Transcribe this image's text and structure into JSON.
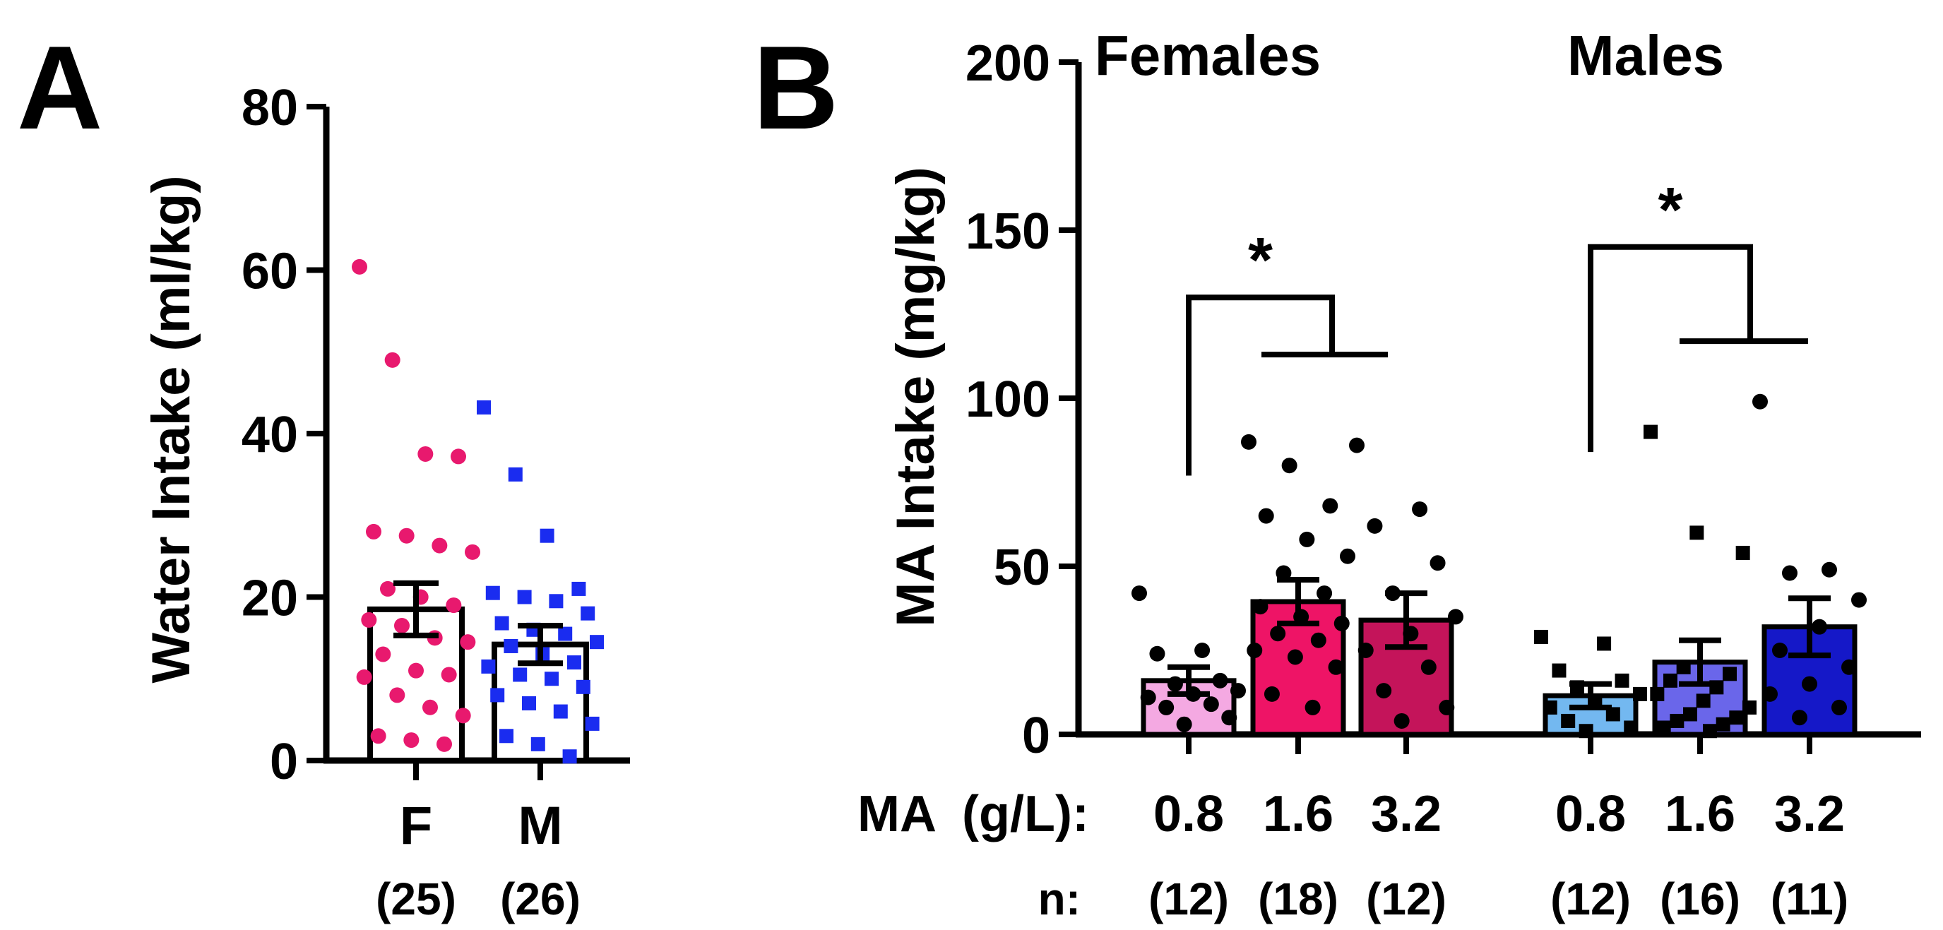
{
  "chart_data": [
    {
      "panel": "A",
      "type": "bar",
      "ylabel": "Water Intake  (ml/kg)",
      "ylim": [
        0,
        80
      ],
      "yticks": [
        0,
        20,
        40,
        60,
        80
      ],
      "categories": [
        "F",
        "M"
      ],
      "n_labels": [
        "(25)",
        "(26)"
      ],
      "values": [
        18.5,
        14.2
      ],
      "sem": [
        3.2,
        2.3
      ],
      "point_colors": [
        "#e8196e",
        "#1a2cf0"
      ],
      "point_shapes": [
        "circle",
        "square"
      ],
      "points": [
        [
          60.4,
          49.0,
          37.5,
          37.2,
          28.0,
          27.5,
          26.3,
          25.5,
          21.0,
          20.0,
          19.0,
          17.2,
          16.5,
          15.0,
          14.5,
          13.0,
          11.0,
          10.5,
          10.2,
          8.0,
          6.5,
          5.5,
          3.0,
          2.5,
          2.0
        ],
        [
          43.2,
          35.0,
          27.5,
          21.0,
          20.5,
          20.0,
          19.5,
          18.0,
          16.8,
          16.0,
          15.5,
          14.5,
          14.0,
          13.0,
          12.0,
          11.5,
          10.5,
          10.0,
          9.0,
          8.0,
          7.0,
          6.0,
          4.5,
          3.0,
          2.0,
          0.5
        ]
      ]
    },
    {
      "panel": "B",
      "type": "bar",
      "ylabel": "MA Intake (mg/kg)",
      "ylim": [
        0,
        200
      ],
      "yticks": [
        0,
        50,
        100,
        150,
        200
      ],
      "group_labels": [
        "Females",
        "Males"
      ],
      "row_labels": {
        "ma": "MA",
        "unit": "(g/L):",
        "n": "n:"
      },
      "categories": [
        "0.8",
        "1.6",
        "3.2",
        "0.8",
        "1.6",
        "3.2"
      ],
      "n_labels": [
        "(12)",
        "(18)",
        "(12)",
        "(12)",
        "(16)",
        "(11)"
      ],
      "values": [
        16,
        39.5,
        34,
        11.5,
        21.5,
        32
      ],
      "sem": [
        4,
        6.5,
        8,
        3.5,
        6.5,
        8.5
      ],
      "bar_colors": [
        "#f4a9e2",
        "#ee1466",
        "#c4145a",
        "#73b8f0",
        "#6a66ea",
        "#1518c8"
      ],
      "point_shapes": [
        "circle",
        "circle",
        "circle",
        "square",
        "square",
        "circle"
      ],
      "points": [
        [
          42,
          25,
          24,
          16,
          15,
          13,
          12,
          11,
          9,
          8,
          5,
          3
        ],
        [
          87,
          80,
          68,
          65,
          58,
          53,
          48,
          42,
          38,
          35,
          33,
          30,
          28,
          25,
          23,
          20,
          12,
          8
        ],
        [
          86,
          67,
          62,
          51,
          42,
          35,
          30,
          25,
          20,
          13,
          8,
          4
        ],
        [
          29,
          27,
          19,
          16,
          14,
          12,
          10,
          8,
          6,
          4,
          2,
          1
        ],
        [
          90,
          60,
          54,
          20,
          18,
          16,
          14,
          12,
          10,
          8,
          6,
          5,
          4,
          3,
          2,
          1
        ],
        [
          99,
          49,
          48,
          40,
          32,
          25,
          20,
          15,
          12,
          8,
          5
        ]
      ],
      "significance": [
        {
          "label": "*",
          "group": "Females"
        },
        {
          "label": "*",
          "group": "Males"
        }
      ]
    }
  ],
  "panel_letters": [
    "A",
    "B"
  ]
}
